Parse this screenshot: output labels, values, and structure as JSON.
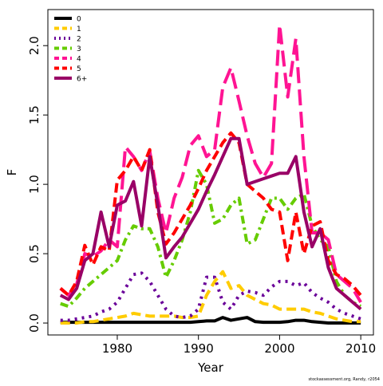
{
  "chart_data": {
    "type": "line",
    "x_label": "Year",
    "y_label": "F",
    "footnote": "stockassessment.org, Randy, r2054",
    "legend": "top-left",
    "x": [
      1973,
      1974,
      1975,
      1976,
      1977,
      1978,
      1979,
      1980,
      1981,
      1982,
      1983,
      1984,
      1985,
      1986,
      1987,
      1988,
      1989,
      1990,
      1991,
      1992,
      1993,
      1994,
      1995,
      1996,
      1997,
      1998,
      1999,
      2000,
      2001,
      2002,
      2003,
      2004,
      2005,
      2006,
      2007,
      2008,
      2009,
      2010
    ],
    "xlim": [
      1971.45,
      2011.56
    ],
    "xticks": [
      1980,
      1990,
      2000,
      2010
    ],
    "ylim": [
      -0.086,
      2.26
    ],
    "yticks": [
      {
        "value": 0,
        "label": "0.0"
      },
      0.5,
      {
        "value": 1,
        "label": "1.0"
      },
      1.5,
      {
        "value": 2,
        "label": "2.0"
      }
    ],
    "series": [
      {
        "name": "0",
        "color": "#000000",
        "dash": "solid",
        "values": [
          0.005,
          0.005,
          0.005,
          0.005,
          0.005,
          0.005,
          0.005,
          0.005,
          0.005,
          0.005,
          0.005,
          0.005,
          0.005,
          0.005,
          0.005,
          0.005,
          0.005,
          0.01,
          0.015,
          0.015,
          0.04,
          0.02,
          0.03,
          0.04,
          0.01,
          0.005,
          0.005,
          0.005,
          0.01,
          0.02,
          0.02,
          0.01,
          0.005,
          0,
          0,
          0,
          0,
          0
        ]
      },
      {
        "name": "1",
        "color": "#ffcc00",
        "dash": "dashed",
        "values": [
          0,
          0,
          0,
          0.01,
          0.01,
          0.02,
          0.03,
          0.04,
          0.05,
          0.07,
          0.06,
          0.05,
          0.05,
          0.05,
          0.05,
          0.04,
          0.04,
          0.05,
          0.2,
          0.3,
          0.37,
          0.25,
          0.27,
          0.2,
          0.17,
          0.14,
          0.13,
          0.1,
          0.1,
          0.1,
          0.1,
          0.08,
          0.07,
          0.05,
          0.03,
          0.02,
          0.01,
          0.01
        ]
      },
      {
        "name": "2",
        "color": "#6a0099",
        "dash": "dotted",
        "values": [
          0.02,
          0.02,
          0.03,
          0.04,
          0.05,
          0.08,
          0.1,
          0.15,
          0.25,
          0.35,
          0.36,
          0.3,
          0.2,
          0.1,
          0.05,
          0.04,
          0.05,
          0.1,
          0.33,
          0.33,
          0.15,
          0.1,
          0.2,
          0.23,
          0.22,
          0.2,
          0.26,
          0.3,
          0.3,
          0.27,
          0.29,
          0.22,
          0.18,
          0.15,
          0.1,
          0.07,
          0.05,
          0.03
        ]
      },
      {
        "name": "3",
        "color": "#66cc00",
        "dash": "dotdash",
        "values": [
          0.14,
          0.12,
          0.18,
          0.25,
          0.3,
          0.35,
          0.4,
          0.45,
          0.6,
          0.7,
          0.68,
          0.68,
          0.55,
          0.33,
          0.45,
          0.6,
          0.8,
          1.1,
          1.0,
          0.72,
          0.75,
          0.85,
          0.9,
          0.57,
          0.6,
          0.75,
          0.9,
          0.9,
          0.82,
          0.9,
          0.93,
          0.7,
          0.6,
          0.55,
          0.3,
          0.2,
          0.15,
          0.12
        ]
      },
      {
        "name": "4",
        "color": "#ff1493",
        "dash": "longdash",
        "values": [
          0.25,
          0.2,
          0.28,
          0.5,
          0.48,
          0.52,
          0.6,
          0.55,
          1.27,
          1.2,
          1.1,
          1.24,
          0.9,
          0.65,
          0.9,
          1.05,
          1.28,
          1.35,
          1.2,
          1.25,
          1.7,
          1.84,
          1.6,
          1.35,
          1.15,
          1.05,
          1.15,
          2.15,
          1.63,
          2.05,
          1.2,
          0.65,
          0.65,
          0.6,
          0.35,
          0.3,
          0.25,
          0.15
        ]
      },
      {
        "name": "5",
        "color": "#ff0000",
        "dash": "dashed",
        "values": [
          0.25,
          0.2,
          0.3,
          0.56,
          0.42,
          0.55,
          0.52,
          1.03,
          1.1,
          1.2,
          1.1,
          1.25,
          0.8,
          0.57,
          0.65,
          0.75,
          0.85,
          0.97,
          1.1,
          1.2,
          1.3,
          1.37,
          1.3,
          1.0,
          0.95,
          0.9,
          0.82,
          0.8,
          0.45,
          0.8,
          0.5,
          0.7,
          0.73,
          0.45,
          0.35,
          0.32,
          0.27,
          0.2
        ]
      },
      {
        "name": "6+",
        "color": "#990066",
        "dash": "solid",
        "values": [
          0.2,
          0.17,
          0.25,
          0.45,
          0.5,
          0.8,
          0.55,
          0.85,
          0.88,
          1.02,
          0.7,
          1.2,
          0.85,
          0.47,
          0.55,
          0.62,
          0.72,
          0.82,
          0.95,
          1.07,
          1.2,
          1.33,
          1.33,
          1.0,
          1.02,
          1.04,
          1.06,
          1.08,
          1.08,
          1.2,
          0.8,
          0.55,
          0.68,
          0.4,
          0.25,
          0.2,
          0.15,
          0.1
        ]
      }
    ]
  }
}
